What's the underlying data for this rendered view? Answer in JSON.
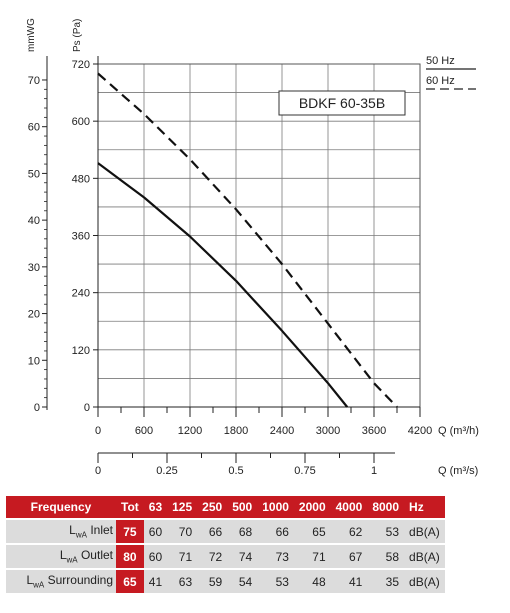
{
  "chart_data": {
    "type": "line",
    "model_label": "BDKF 60-35B",
    "y_left_outer_label": "mmWG",
    "y_left_inner_label": "Ps (Pa)",
    "x_label_primary": "Q (m³/h)",
    "x_label_secondary": "Q (m³/s)",
    "x_range": [
      0,
      4200
    ],
    "y_range": [
      0,
      720
    ],
    "x_ticks": [
      "0",
      "600",
      "1200",
      "1800",
      "2400",
      "3000",
      "3600",
      "4200"
    ],
    "y_ticks_pa": [
      "0",
      "120",
      "240",
      "360",
      "480",
      "600",
      "720"
    ],
    "y_ticks_mmwg": [
      "0",
      "10",
      "20",
      "30",
      "40",
      "50",
      "60",
      "70"
    ],
    "x2_ticks": [
      "0",
      "0.25",
      "0.5",
      "0.75",
      "1"
    ],
    "legend": [
      {
        "name": "50 Hz",
        "style": "solid"
      },
      {
        "name": "60 Hz",
        "style": "dashed"
      }
    ],
    "series": [
      {
        "name": "50 Hz",
        "style": "solid",
        "x": [
          0,
          600,
          1200,
          1800,
          2400,
          3000,
          3250
        ],
        "y": [
          512,
          440,
          358,
          265,
          160,
          50,
          0
        ]
      },
      {
        "name": "60 Hz",
        "style": "dashed",
        "x": [
          0,
          600,
          1200,
          1800,
          2400,
          3000,
          3600,
          3900
        ],
        "y": [
          700,
          615,
          520,
          415,
          300,
          175,
          50,
          0
        ]
      }
    ]
  },
  "sound_table": {
    "headers": [
      "Frequency",
      "Tot",
      "63",
      "125",
      "250",
      "500",
      "1000",
      "2000",
      "4000",
      "8000",
      "Hz"
    ],
    "rows": [
      {
        "label_main": "L",
        "label_sub": "wA",
        "label_rest": " Inlet",
        "tot": "75",
        "values": [
          "60",
          "70",
          "66",
          "68",
          "66",
          "65",
          "62",
          "53"
        ],
        "unit": "dB(A)"
      },
      {
        "label_main": "L",
        "label_sub": "wA",
        "label_rest": " Outlet",
        "tot": "80",
        "values": [
          "60",
          "71",
          "72",
          "74",
          "73",
          "71",
          "67",
          "58"
        ],
        "unit": "dB(A)"
      },
      {
        "label_main": "L",
        "label_sub": "wA",
        "label_rest": " Surrounding",
        "tot": "65",
        "values": [
          "41",
          "63",
          "59",
          "54",
          "53",
          "48",
          "41",
          "35"
        ],
        "unit": "dB(A)"
      }
    ]
  }
}
